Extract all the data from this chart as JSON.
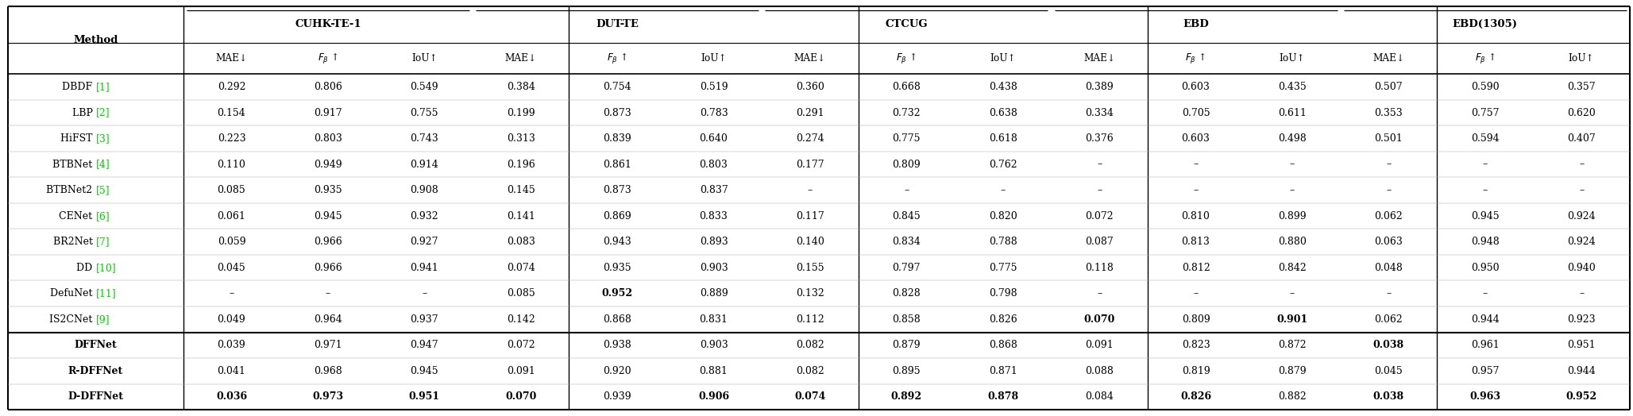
{
  "col_groups": [
    {
      "name": "CUHK-TE-1"
    },
    {
      "name": "DUT-TE"
    },
    {
      "name": "CTCUG"
    },
    {
      "name": "EBD"
    },
    {
      "name": "EBD(1305)"
    }
  ],
  "methods": [
    "DBDF [1]",
    "LBP [2]",
    "HiFST [3]",
    "BTBNet [4]",
    "BTBNet2 [5]",
    "CENet [6]",
    "BR2Net [7]",
    "DD [10]",
    "DefuNet [11]",
    "IS2CNet [9]",
    "DFFNet",
    "R-DFFNet",
    "D-DFFNet"
  ],
  "separator_after_idx": 9,
  "data": {
    "DBDF [1]": [
      "0.292",
      "0.806",
      "0.549",
      "0.384",
      "0.754",
      "0.519",
      "0.360",
      "0.668",
      "0.438",
      "0.389",
      "0.603",
      "0.435",
      "0.507",
      "0.590",
      "0.357"
    ],
    "LBP [2]": [
      "0.154",
      "0.917",
      "0.755",
      "0.199",
      "0.873",
      "0.783",
      "0.291",
      "0.732",
      "0.638",
      "0.334",
      "0.705",
      "0.611",
      "0.353",
      "0.757",
      "0.620"
    ],
    "HiFST [3]": [
      "0.223",
      "0.803",
      "0.743",
      "0.313",
      "0.839",
      "0.640",
      "0.274",
      "0.775",
      "0.618",
      "0.376",
      "0.603",
      "0.498",
      "0.501",
      "0.594",
      "0.407"
    ],
    "BTBNet [4]": [
      "0.110",
      "0.949",
      "0.914",
      "0.196",
      "0.861",
      "0.803",
      "0.177",
      "0.809",
      "0.762",
      "–",
      "–",
      "–",
      "–",
      "–",
      "–"
    ],
    "BTBNet2 [5]": [
      "0.085",
      "0.935",
      "0.908",
      "0.145",
      "0.873",
      "0.837",
      "–",
      "–",
      "–",
      "–",
      "–",
      "–",
      "–",
      "–",
      "–"
    ],
    "CENet [6]": [
      "0.061",
      "0.945",
      "0.932",
      "0.141",
      "0.869",
      "0.833",
      "0.117",
      "0.845",
      "0.820",
      "0.072",
      "0.810",
      "0.899",
      "0.062",
      "0.945",
      "0.924"
    ],
    "BR2Net [7]": [
      "0.059",
      "0.966",
      "0.927",
      "0.083",
      "0.943",
      "0.893",
      "0.140",
      "0.834",
      "0.788",
      "0.087",
      "0.813",
      "0.880",
      "0.063",
      "0.948",
      "0.924"
    ],
    "DD [10]": [
      "0.045",
      "0.966",
      "0.941",
      "0.074",
      "0.935",
      "0.903",
      "0.155",
      "0.797",
      "0.775",
      "0.118",
      "0.812",
      "0.842",
      "0.048",
      "0.950",
      "0.940"
    ],
    "DefuNet [11]": [
      "–",
      "–",
      "–",
      "0.085",
      "0.952",
      "0.889",
      "0.132",
      "0.828",
      "0.798",
      "–",
      "–",
      "–",
      "–",
      "–",
      "–"
    ],
    "IS2CNet [9]": [
      "0.049",
      "0.964",
      "0.937",
      "0.142",
      "0.868",
      "0.831",
      "0.112",
      "0.858",
      "0.826",
      "0.070",
      "0.809",
      "0.901",
      "0.062",
      "0.944",
      "0.923"
    ],
    "DFFNet": [
      "0.039",
      "0.971",
      "0.947",
      "0.072",
      "0.938",
      "0.903",
      "0.082",
      "0.879",
      "0.868",
      "0.091",
      "0.823",
      "0.872",
      "0.038",
      "0.961",
      "0.951"
    ],
    "R-DFFNet": [
      "0.041",
      "0.968",
      "0.945",
      "0.091",
      "0.920",
      "0.881",
      "0.082",
      "0.895",
      "0.871",
      "0.088",
      "0.819",
      "0.879",
      "0.045",
      "0.957",
      "0.944"
    ],
    "D-DFFNet": [
      "0.036",
      "0.973",
      "0.951",
      "0.070",
      "0.939",
      "0.906",
      "0.074",
      "0.892",
      "0.878",
      "0.084",
      "0.826",
      "0.882",
      "0.038",
      "0.963",
      "0.952"
    ]
  },
  "bold_cells": {
    "IS2CNet [9]": [
      false,
      false,
      false,
      false,
      false,
      false,
      false,
      false,
      false,
      true,
      false,
      true,
      false,
      false,
      false
    ],
    "DFFNet": [
      false,
      false,
      false,
      false,
      false,
      false,
      false,
      false,
      false,
      false,
      false,
      false,
      true,
      false,
      false
    ],
    "D-DFFNet": [
      true,
      true,
      true,
      true,
      false,
      true,
      true,
      true,
      true,
      false,
      true,
      false,
      true,
      true,
      true
    ],
    "DefuNet [11]": [
      false,
      false,
      false,
      false,
      true,
      false,
      false,
      false,
      false,
      false,
      false,
      false,
      false,
      false,
      false
    ]
  },
  "green_methods": [
    "DBDF [1]",
    "LBP [2]",
    "HiFST [3]",
    "BTBNet [4]",
    "BTBNet2 [5]",
    "CENet [6]",
    "BR2Net [7]",
    "DD [10]",
    "DefuNet [11]",
    "IS2CNet [9]"
  ],
  "ref_color": "#00cc00",
  "font_size": 9.0,
  "header_font_size": 9.5
}
